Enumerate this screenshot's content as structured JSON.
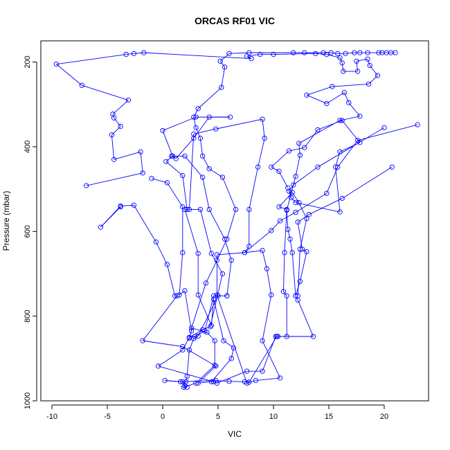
{
  "chart_data": {
    "type": "line",
    "title": "ORCAS RF01 VIC",
    "xlabel": "VIC",
    "ylabel": "Pressure (mbar)",
    "xlim": [
      -11,
      24
    ],
    "ylim": [
      1000,
      150
    ],
    "y_reversed": true,
    "x_ticks": [
      -10,
      -5,
      0,
      5,
      10,
      15,
      20
    ],
    "y_ticks": [
      200,
      400,
      600,
      800,
      1000
    ],
    "grid": false,
    "legend": "none",
    "marker": "open-circle",
    "colors": {
      "series": "#0000ff",
      "axis": "#000000",
      "background": "#ffffff"
    },
    "series": [
      {
        "points": [
          [
            21.0,
            178
          ],
          [
            20.6,
            178
          ],
          [
            20.2,
            178
          ],
          [
            19.8,
            178
          ],
          [
            19.5,
            178
          ],
          [
            18.5,
            178
          ],
          [
            17.8,
            178
          ],
          [
            17.3,
            178
          ],
          [
            16.5,
            180
          ],
          [
            15.8,
            180
          ],
          [
            15.2,
            178
          ],
          [
            14.5,
            178
          ],
          [
            12.8,
            178
          ],
          [
            11.8,
            178
          ],
          [
            7.8,
            178
          ],
          [
            6.0,
            180
          ],
          [
            5.2,
            198
          ],
          [
            5.6,
            212
          ],
          [
            5.3,
            260
          ],
          [
            3.2,
            310
          ],
          [
            2.8,
            330
          ],
          [
            3.0,
            355
          ],
          [
            3.4,
            380
          ],
          [
            3.6,
            422
          ],
          [
            4.2,
            452
          ],
          [
            5.4,
            472
          ],
          [
            6.6,
            548
          ],
          [
            5.8,
            618
          ],
          [
            4.9,
            668
          ],
          [
            3.9,
            722
          ],
          [
            2.6,
            828
          ],
          [
            4.0,
            838
          ],
          [
            4.7,
            858
          ],
          [
            4.7,
            916
          ],
          [
            3.0,
            958
          ],
          [
            1.9,
            968
          ],
          [
            2.1,
            955
          ],
          [
            2.2,
            942
          ],
          [
            2.4,
            880
          ],
          [
            2.8,
            853
          ],
          [
            3.2,
            847
          ],
          [
            5.0,
            752
          ]
        ]
      },
      {
        "points": [
          [
            5.8,
            752
          ],
          [
            6.2,
            668
          ],
          [
            5.6,
            618
          ],
          [
            4.2,
            548
          ],
          [
            3.6,
            472
          ],
          [
            2.0,
            422
          ],
          [
            0.8,
            422
          ],
          [
            1.2,
            428
          ],
          [
            2.8,
            380
          ],
          [
            4.2,
            330
          ],
          [
            6.1,
            330
          ],
          [
            3.0,
            330
          ],
          [
            0.0,
            362
          ],
          [
            0.9,
            422
          ],
          [
            0.3,
            435
          ],
          [
            1.8,
            468
          ],
          [
            2.2,
            548
          ],
          [
            3.4,
            548
          ],
          [
            4.4,
            652
          ],
          [
            5.4,
            700
          ],
          [
            4.3,
            825
          ],
          [
            3.6,
            832
          ],
          [
            2.4,
            850
          ],
          [
            1.8,
            880
          ],
          [
            -0.4,
            918
          ],
          [
            4.6,
            955
          ],
          [
            4.9,
            958
          ],
          [
            7.6,
            930
          ],
          [
            9.0,
            930
          ],
          [
            10.2,
            848
          ],
          [
            10.4,
            848
          ],
          [
            11.2,
            848
          ],
          [
            11.2,
            752
          ],
          [
            10.9,
            742
          ],
          [
            11.0,
            650
          ],
          [
            11.2,
            548
          ],
          [
            10.5,
            542
          ],
          [
            11.7,
            508
          ],
          [
            12.3,
            532
          ],
          [
            13.0,
            570
          ],
          [
            12.4,
            642
          ],
          [
            12.2,
            752
          ]
        ]
      },
      {
        "points": [
          [
            12.0,
            752
          ],
          [
            11.7,
            650
          ],
          [
            11.5,
            618
          ],
          [
            11.3,
            595
          ],
          [
            11.2,
            550
          ],
          [
            12.0,
            470
          ],
          [
            12.4,
            420
          ],
          [
            12.3,
            392
          ],
          [
            16.0,
            338
          ],
          [
            17.8,
            328
          ],
          [
            16.8,
            296
          ],
          [
            16.4,
            272
          ],
          [
            14.8,
            298
          ],
          [
            13.0,
            278
          ],
          [
            15.3,
            258
          ],
          [
            18.6,
            252
          ],
          [
            19.4,
            232
          ],
          [
            18.7,
            208
          ],
          [
            18.5,
            193
          ],
          [
            17.5,
            198
          ],
          [
            17.6,
            222
          ],
          [
            16.3,
            222
          ],
          [
            16.2,
            202
          ],
          [
            16.0,
            190
          ],
          [
            14.8,
            182
          ],
          [
            13.8,
            180
          ],
          [
            10.0,
            182
          ],
          [
            8.8,
            182
          ],
          [
            7.6,
            186
          ],
          [
            8.0,
            192
          ],
          [
            -1.7,
            178
          ],
          [
            -2.6,
            180
          ],
          [
            -3.3,
            182
          ],
          [
            -9.6,
            205
          ],
          [
            -7.3,
            255
          ],
          [
            -3.1,
            290
          ],
          [
            -4.5,
            323
          ],
          [
            -4.4,
            332
          ],
          [
            -3.8,
            352
          ],
          [
            -4.6,
            372
          ],
          [
            -4.4,
            430
          ],
          [
            -2.0,
            412
          ],
          [
            -1.8,
            462
          ],
          [
            -6.9,
            492
          ]
        ]
      },
      {
        "points": [
          [
            -3.8,
            542
          ],
          [
            -5.6,
            590
          ],
          [
            -3.8,
            540
          ],
          [
            -2.6,
            538
          ],
          [
            -0.6,
            625
          ],
          [
            0.4,
            678
          ],
          [
            1.1,
            752
          ],
          [
            1.3,
            752
          ],
          [
            -1.8,
            858
          ],
          [
            1.8,
            872
          ],
          [
            4.8,
            918
          ],
          [
            3.2,
            958
          ],
          [
            4.4,
            955
          ],
          [
            6.2,
            900
          ],
          [
            6.4,
            875
          ],
          [
            5.5,
            858
          ],
          [
            4.6,
            760
          ],
          [
            4.4,
            822
          ],
          [
            3.2,
            750
          ],
          [
            3.2,
            652
          ],
          [
            2.0,
            548
          ],
          [
            2.4,
            548
          ],
          [
            2.8,
            370
          ],
          [
            4.8,
            358
          ],
          [
            9.0,
            335
          ],
          [
            9.2,
            380
          ],
          [
            8.6,
            448
          ],
          [
            7.8,
            548
          ],
          [
            7.8,
            635
          ],
          [
            7.4,
            650
          ],
          [
            4.9,
            655
          ],
          [
            4.9,
            750
          ],
          [
            7.6,
            958
          ],
          [
            8.4,
            952
          ],
          [
            10.6,
            946
          ],
          [
            9.0,
            858
          ],
          [
            9.8,
            750
          ],
          [
            9.4,
            688
          ],
          [
            9.0,
            645
          ],
          [
            7.4,
            650
          ],
          [
            9.8,
            598
          ],
          [
            10.6,
            575
          ],
          [
            12.0,
            555
          ],
          [
            14.8,
            510
          ],
          [
            15.8,
            448
          ],
          [
            17.6,
            385
          ],
          [
            23.0,
            348
          ]
        ]
      },
      {
        "points": [
          [
            20.7,
            448
          ],
          [
            16.2,
            522
          ],
          [
            13.2,
            560
          ],
          [
            12.2,
            578
          ],
          [
            12.6,
            642
          ],
          [
            13.0,
            648
          ],
          [
            12.4,
            718
          ],
          [
            12.0,
            752
          ],
          [
            12.2,
            762
          ],
          [
            13.6,
            848
          ],
          [
            10.3,
            848
          ],
          [
            7.8,
            956
          ],
          [
            7.4,
            955
          ],
          [
            6.0,
            954
          ],
          [
            4.8,
            952
          ],
          [
            1.6,
            955
          ],
          [
            0.2,
            952
          ],
          [
            1.8,
            955
          ],
          [
            2.0,
            965
          ],
          [
            2.2,
            968
          ]
        ]
      },
      {
        "points": [
          [
            20.0,
            355
          ],
          [
            14.0,
            448
          ],
          [
            11.8,
            490
          ],
          [
            11.4,
            505
          ],
          [
            11.6,
            520
          ],
          [
            12.0,
            532
          ],
          [
            16.0,
            554
          ],
          [
            15.6,
            448
          ],
          [
            16.0,
            412
          ],
          [
            17.8,
            390
          ],
          [
            16.2,
            338
          ],
          [
            14.0,
            360
          ],
          [
            12.8,
            402
          ],
          [
            11.4,
            410
          ],
          [
            9.8,
            448
          ],
          [
            10.5,
            458
          ],
          [
            11.3,
            497
          ]
        ]
      },
      {
        "points": [
          [
            -1.0,
            475
          ],
          [
            0.4,
            485
          ],
          [
            1.8,
            542
          ],
          [
            1.8,
            650
          ],
          [
            1.5,
            750
          ],
          [
            2.0,
            740
          ],
          [
            2.6,
            835
          ],
          [
            2.4,
            852
          ],
          [
            2.9,
            848
          ],
          [
            3.8,
            835
          ],
          [
            4.6,
            752
          ],
          [
            5.8,
            752
          ]
        ]
      }
    ]
  }
}
